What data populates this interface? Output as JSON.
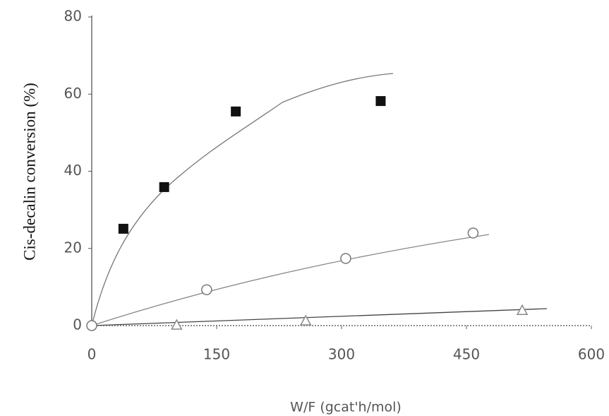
{
  "chart_data": {
    "type": "scatter",
    "y_label": "Cis-decalin conversion (%)",
    "x_label": "W/F (gcat'h/mol)",
    "xlim": [
      0,
      600
    ],
    "xticks": [
      0,
      150,
      300,
      450,
      600
    ],
    "ylim": [
      0,
      80
    ],
    "yticks": [
      0,
      20,
      40,
      60,
      80
    ],
    "series": [
      {
        "color": "#111111",
        "marker": "square",
        "x": [
          38,
          87,
          173,
          347
        ],
        "values": [
          25.1,
          35.9,
          55.5,
          58.2
        ]
      },
      {
        "color": "#777777",
        "marker": "circle",
        "x": [
          0,
          138,
          305,
          458
        ],
        "values": [
          0,
          9.3,
          17.4,
          24
        ]
      },
      {
        "color": "#888888",
        "marker": "triangle",
        "x": [
          102,
          257,
          517
        ],
        "values": [
          0,
          1.1,
          3.8
        ]
      }
    ]
  }
}
